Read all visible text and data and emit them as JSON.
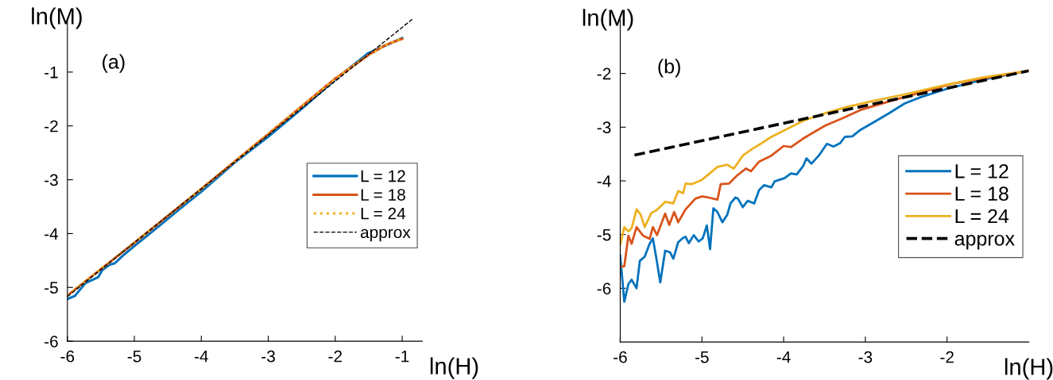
{
  "chart_data": [
    {
      "type": "line",
      "xlabel": "ln(H)",
      "ylabel": "ln(M)",
      "annotations": [
        "(a)"
      ],
      "xlim": [
        -6,
        -0.7
      ],
      "ylim": [
        -6,
        0
      ],
      "xticks": [
        -6,
        -5,
        -4,
        -3,
        -2,
        -1
      ],
      "yticks": [
        -6,
        -5,
        -4,
        -3,
        -2,
        -1
      ],
      "legend": "center right",
      "grid": false,
      "series": [
        {
          "name": "L = 12",
          "color": "#0072bd",
          "line_style": "solid",
          "x": [
            -5.99,
            -5.89,
            -5.73,
            -5.54,
            -5.48,
            -5.37,
            -5.29,
            -5.18,
            -4.97,
            -4.8,
            -4.63,
            -4.3,
            -4.0,
            -3.5,
            -3.0,
            -2.5,
            -2.01,
            -1.51,
            -1.0
          ],
          "values": [
            -5.21,
            -5.16,
            -4.92,
            -4.81,
            -4.68,
            -4.58,
            -4.55,
            -4.42,
            -4.2,
            -4.03,
            -3.86,
            -3.52,
            -3.22,
            -2.68,
            -2.2,
            -1.68,
            -1.15,
            -0.65,
            -0.37
          ]
        },
        {
          "name": "L = 18",
          "color": "#d95319",
          "line_style": "solid",
          "x": [
            -6,
            -5,
            -4,
            -3,
            -2,
            -1.5,
            -1.25,
            -1
          ],
          "values": [
            -5.15,
            -4.17,
            -3.17,
            -2.15,
            -1.12,
            -0.68,
            -0.5,
            -0.38
          ]
        },
        {
          "name": "L = 24",
          "color": "#edb120",
          "line_style": "dotted",
          "x": [
            -6,
            -5,
            -4,
            -3,
            -2,
            -1.5,
            -1.25,
            -1
          ],
          "values": [
            -5.15,
            -4.17,
            -3.17,
            -2.15,
            -1.12,
            -0.68,
            -0.5,
            -0.38
          ]
        },
        {
          "name": "approx",
          "color": "#000000",
          "line_style": "dashed",
          "x": [
            -6,
            -0.83
          ],
          "values": [
            -5.17,
            0.0
          ]
        }
      ]
    },
    {
      "type": "line",
      "xlabel": "ln(H)",
      "ylabel": "ln(M)",
      "annotations": [
        "(b)"
      ],
      "xlim": [
        -6,
        -1
      ],
      "ylim": [
        -7,
        -1
      ],
      "xticks": [
        -6,
        -5,
        -4,
        -3,
        -2
      ],
      "yticks": [
        -6,
        -5,
        -4,
        -3,
        -2
      ],
      "legend": "center right",
      "grid": false,
      "series": [
        {
          "name": "L = 12",
          "color": "#0072bd",
          "line_style": "solid",
          "x": [
            -6,
            -5.95,
            -5.9,
            -5.86,
            -5.8,
            -5.76,
            -5.7,
            -5.64,
            -5.6,
            -5.56,
            -5.51,
            -5.45,
            -5.39,
            -5.35,
            -5.29,
            -5.23,
            -5.2,
            -5.16,
            -5.1,
            -5.04,
            -4.99,
            -4.94,
            -4.9,
            -4.86,
            -4.81,
            -4.75,
            -4.69,
            -4.65,
            -4.59,
            -4.56,
            -4.5,
            -4.44,
            -4.36,
            -4.3,
            -4.24,
            -4.15,
            -4.11,
            -3.99,
            -3.91,
            -3.84,
            -3.76,
            -3.72,
            -3.66,
            -3.57,
            -3.47,
            -3.39,
            -3.31,
            -3.25,
            -3.16,
            -3.06,
            -2.9,
            -2.71,
            -2.52,
            -2.32,
            -2.01,
            -1.55,
            -1.0
          ],
          "values": [
            -5.39,
            -6.25,
            -5.92,
            -5.84,
            -6.0,
            -5.49,
            -5.41,
            -5.17,
            -5.07,
            -5.42,
            -5.89,
            -5.3,
            -5.33,
            -5.45,
            -5.14,
            -5.06,
            -5.04,
            -5.16,
            -5.01,
            -5.13,
            -5.07,
            -4.83,
            -5.27,
            -4.51,
            -4.58,
            -4.77,
            -4.63,
            -4.42,
            -4.31,
            -4.33,
            -4.49,
            -4.37,
            -4.42,
            -4.17,
            -4.08,
            -4.12,
            -4.01,
            -3.95,
            -3.86,
            -3.88,
            -3.72,
            -3.58,
            -3.68,
            -3.53,
            -3.31,
            -3.36,
            -3.3,
            -3.18,
            -3.17,
            -3.05,
            -2.91,
            -2.74,
            -2.56,
            -2.44,
            -2.29,
            -2.11,
            -1.95
          ]
        },
        {
          "name": "L = 18",
          "color": "#d95319",
          "line_style": "solid",
          "x": [
            -6,
            -5.95,
            -5.9,
            -5.86,
            -5.8,
            -5.72,
            -5.64,
            -5.6,
            -5.55,
            -5.45,
            -5.4,
            -5.34,
            -5.29,
            -5.2,
            -5.08,
            -5.0,
            -4.92,
            -4.81,
            -4.77,
            -4.67,
            -4.57,
            -4.46,
            -4.4,
            -4.3,
            -4.15,
            -4.0,
            -3.91,
            -3.76,
            -3.49,
            -3.29,
            -3.06,
            -2.71,
            -2.32,
            -1.93,
            -1.0
          ],
          "values": [
            -5.6,
            -5.59,
            -5.02,
            -5.17,
            -4.86,
            -5.02,
            -5.08,
            -4.86,
            -5.01,
            -4.61,
            -4.82,
            -4.58,
            -4.77,
            -4.53,
            -4.33,
            -4.29,
            -4.31,
            -4.35,
            -4.06,
            -4.05,
            -3.9,
            -3.77,
            -3.82,
            -3.64,
            -3.53,
            -3.35,
            -3.37,
            -3.21,
            -2.97,
            -2.84,
            -2.68,
            -2.52,
            -2.35,
            -2.19,
            -1.95
          ]
        },
        {
          "name": "L = 24",
          "color": "#edb120",
          "line_style": "solid",
          "x": [
            -6,
            -5.95,
            -5.9,
            -5.86,
            -5.8,
            -5.75,
            -5.7,
            -5.62,
            -5.55,
            -5.45,
            -5.35,
            -5.29,
            -5.23,
            -5.2,
            -5.12,
            -5.0,
            -4.92,
            -4.81,
            -4.69,
            -4.61,
            -4.5,
            -4.38,
            -4.26,
            -4.15,
            -3.99,
            -3.76,
            -3.49,
            -3.22,
            -2.9,
            -2.52,
            -2.01,
            -1.55,
            -1.0
          ],
          "values": [
            -5.19,
            -4.86,
            -4.94,
            -4.88,
            -4.53,
            -4.63,
            -4.86,
            -4.6,
            -4.54,
            -4.39,
            -4.42,
            -4.19,
            -4.23,
            -4.05,
            -4.06,
            -3.98,
            -3.88,
            -3.74,
            -3.7,
            -3.77,
            -3.53,
            -3.4,
            -3.29,
            -3.18,
            -3.06,
            -2.88,
            -2.74,
            -2.62,
            -2.51,
            -2.39,
            -2.21,
            -2.07,
            -1.95
          ]
        },
        {
          "name": "approx",
          "color": "#000000",
          "line_style": "dashed",
          "x": [
            -5.825,
            -1.0
          ],
          "values": [
            -3.52,
            -1.95
          ]
        }
      ]
    }
  ]
}
